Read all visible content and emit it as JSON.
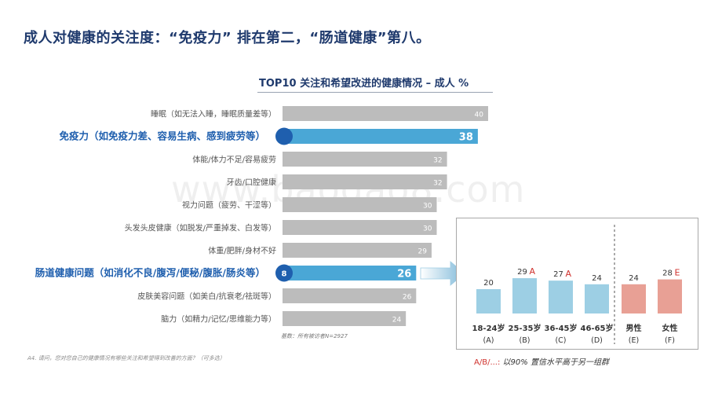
{
  "page": {
    "title": "成人对健康的关注度：“免疫力” 排在第二，“肠道健康”第八。",
    "watermark": "www.baogao8.com",
    "basis": "基数：所有被访者N=2927",
    "question": "A4. 请问，您对您自己的健康情况有哪些关注和希望得到改善的方面？（可多选）",
    "sig_note_letters": "A/B/...:",
    "sig_note_text": "以90% 置信水平高于另一组群"
  },
  "colors": {
    "gray_bar": "#bcbcbc",
    "highlight_bar": "#4aa7d6",
    "highlight_text": "#1f5fae",
    "marker": "#1f5fae",
    "age_bar": "#9dcfe4",
    "gender_bar": "#e8a095",
    "sig_red": "#d0312d",
    "title": "#1f3a6d"
  },
  "chart_data": [
    {
      "type": "bar",
      "orientation": "horizontal",
      "title": "TOP10 关注和希望改进的健康情况 – 成人 %",
      "categories": [
        "睡眠（如无法入睡，睡眠质量差等）",
        "免疫力（如免疫力差、容易生病、感到疲劳等）",
        "体能/体力不足/容易疲劳",
        "牙齿/口腔健康",
        "视力问题（疲劳、干涩等）",
        "头发头皮健康（如脱发/严重掉发、白发等）",
        "体重/肥胖/身材不好",
        "肠道健康问题（如消化不良/腹泻/便秘/腹胀/肠炎等）",
        "皮肤美容问题（如美白/抗衰老/祛斑等）",
        "脑力（如精力/记忆/思维能力等）"
      ],
      "values": [
        40,
        38,
        32,
        32,
        30,
        30,
        29,
        26,
        26,
        24
      ],
      "highlighted": [
        false,
        true,
        false,
        false,
        false,
        false,
        false,
        true,
        false,
        false
      ],
      "rank_markers": [
        "",
        "",
        "",
        "",
        "",
        "",
        "",
        "8",
        "",
        ""
      ]
    },
    {
      "type": "bar",
      "orientation": "vertical",
      "categories": [
        "18-24岁",
        "25-35岁",
        "36-45岁",
        "46-65岁",
        "男性",
        "女性"
      ],
      "group_codes": [
        "(A)",
        "(B)",
        "(C)",
        "(D)",
        "(E)",
        "(F)"
      ],
      "values": [
        20,
        29,
        27,
        24,
        24,
        28
      ],
      "significance": [
        "",
        "A",
        "A",
        "",
        "",
        "E"
      ],
      "groups": [
        "age",
        "age",
        "age",
        "age",
        "gender",
        "gender"
      ]
    }
  ]
}
